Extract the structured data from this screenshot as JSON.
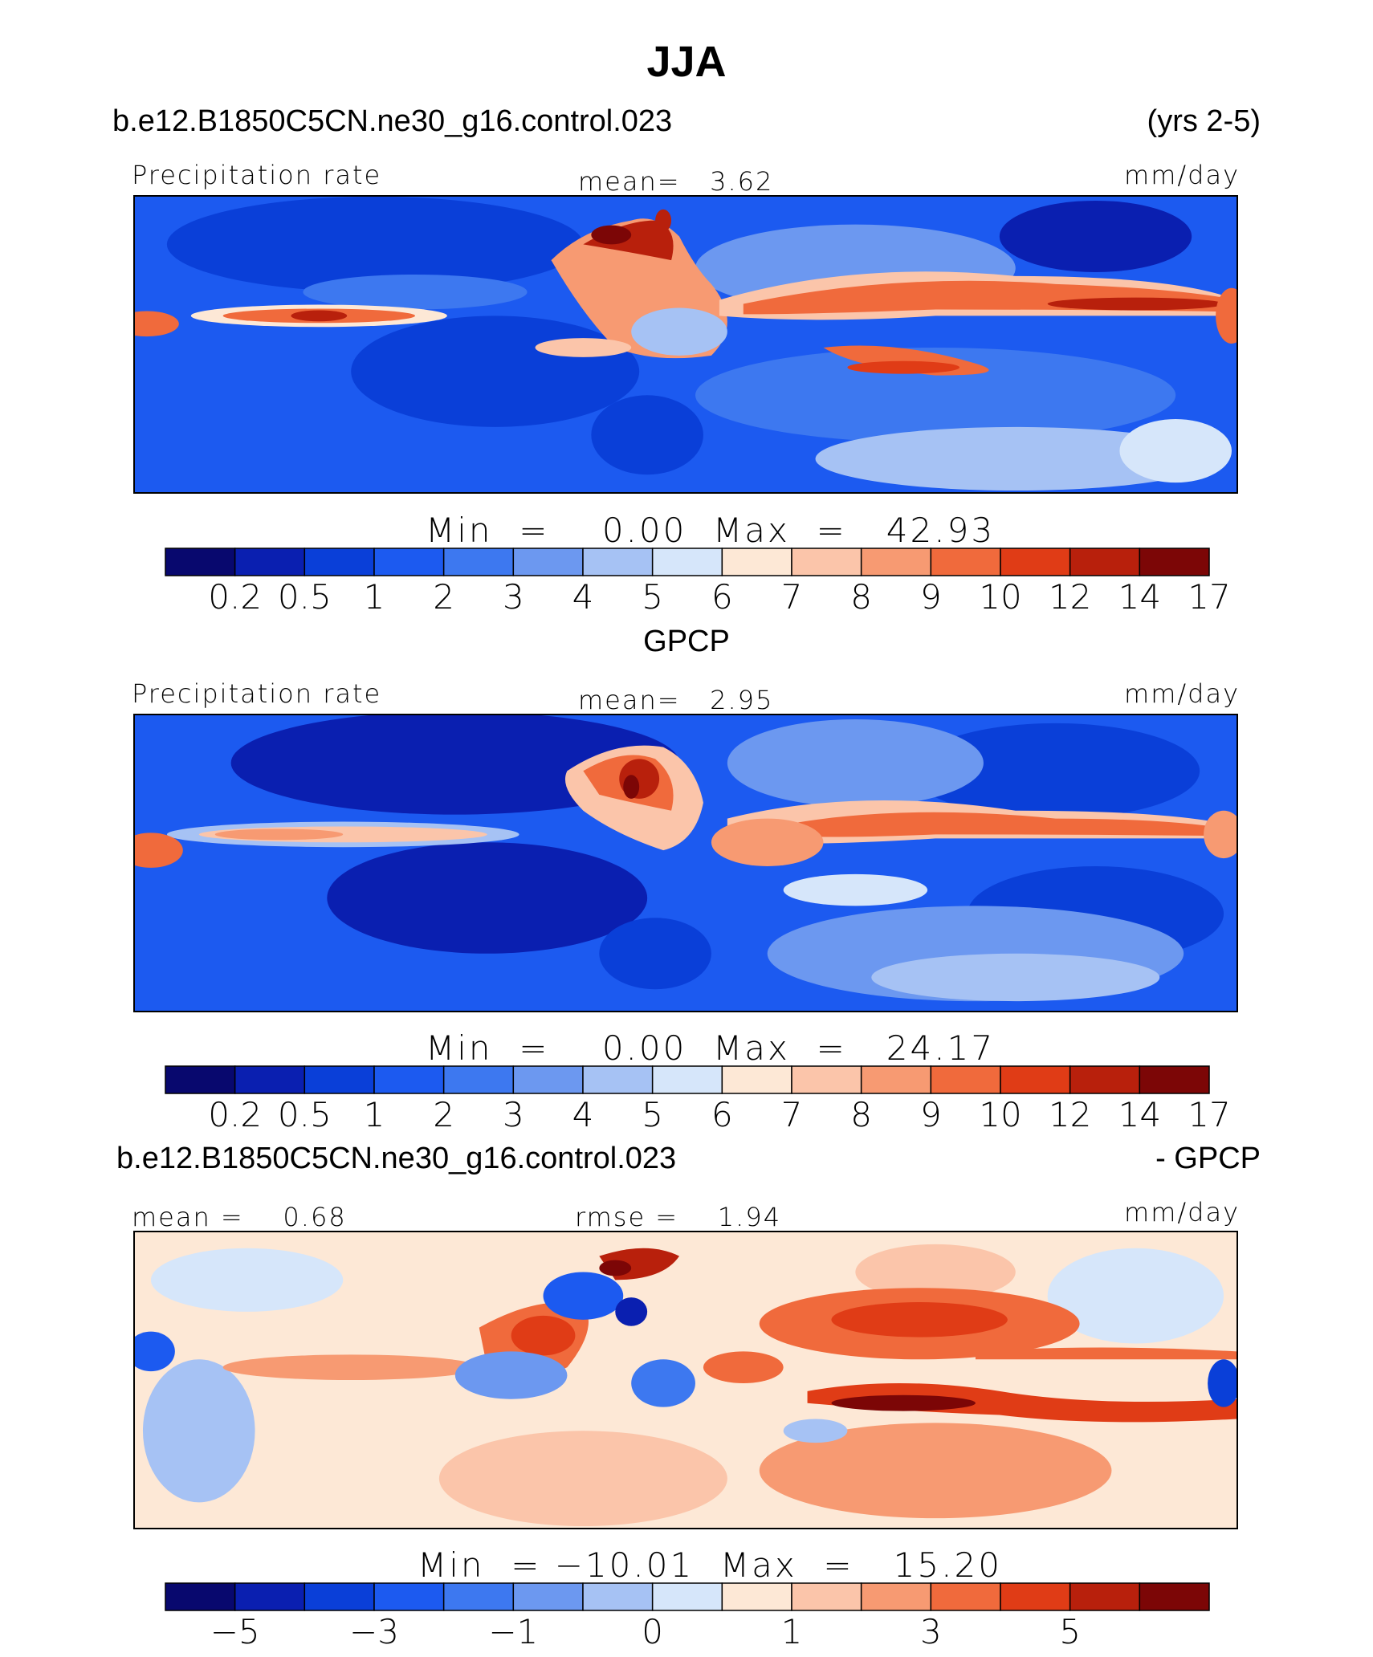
{
  "page": {
    "title": "JJA"
  },
  "panels": [
    {
      "case_label": "b.e12.B1850C5CN.ne30_g16.control.023",
      "years_label": "(yrs 2-5)",
      "variable_label": "Precipitation rate",
      "stat_label": "mean=   3.62",
      "units": "mm/day",
      "minmax_label": "Min  =    0.00  Max  =   42.93",
      "colorbar_ticks": [
        "0.2",
        "0.5",
        "1",
        "2",
        "3",
        "4",
        "5",
        "6",
        "7",
        "8",
        "9",
        "10",
        "12",
        "14",
        "17"
      ]
    },
    {
      "case_label": "GPCP",
      "variable_label": "Precipitation rate",
      "stat_label": "mean=   2.95",
      "units": "mm/day",
      "minmax_label": "Min  =    0.00  Max  =   24.17",
      "colorbar_ticks": [
        "0.2",
        "0.5",
        "1",
        "2",
        "3",
        "4",
        "5",
        "6",
        "7",
        "8",
        "9",
        "10",
        "12",
        "14",
        "17"
      ]
    },
    {
      "case_label": "b.e12.B1850C5CN.ne30_g16.control.023",
      "diff_label": "- GPCP",
      "mean_label": "mean =    0.68",
      "rmse_label": "rmse =    1.94",
      "units": "mm/day",
      "minmax_label": "Min  = −10.01  Max  =   15.20",
      "colorbar_ticks": [
        "−5",
        "−3",
        "−1",
        "0",
        "1",
        "3",
        "5"
      ]
    }
  ],
  "chart_data": [
    {
      "type": "heatmap",
      "title": "Precipitation rate",
      "case": "b.e12.B1850C5CN.ne30_g16.control.023",
      "period": "(yrs 2-5)",
      "season": "JJA",
      "units": "mm/day",
      "mean": 3.62,
      "min": 0.0,
      "max": 42.93,
      "contour_levels": [
        0.2,
        0.5,
        1,
        2,
        3,
        4,
        5,
        6,
        7,
        8,
        9,
        10,
        12,
        14,
        17
      ],
      "colorbar_colors": [
        "#08086e",
        "#0a1fb0",
        "#0a3fd8",
        "#1c5af0",
        "#3d78f0",
        "#6c98f0",
        "#a6c2f4",
        "#d6e6fa",
        "#fde8d6",
        "#fbc5aa",
        "#f79a72",
        "#f06a3c",
        "#e03c16",
        "#b8200c",
        "#7c0606"
      ]
    },
    {
      "type": "heatmap",
      "title": "Precipitation rate",
      "case": "GPCP",
      "season": "JJA",
      "units": "mm/day",
      "mean": 2.95,
      "min": 0.0,
      "max": 24.17,
      "contour_levels": [
        0.2,
        0.5,
        1,
        2,
        3,
        4,
        5,
        6,
        7,
        8,
        9,
        10,
        12,
        14,
        17
      ],
      "colorbar_colors": [
        "#08086e",
        "#0a1fb0",
        "#0a3fd8",
        "#1c5af0",
        "#3d78f0",
        "#6c98f0",
        "#a6c2f4",
        "#d6e6fa",
        "#fde8d6",
        "#fbc5aa",
        "#f79a72",
        "#f06a3c",
        "#e03c16",
        "#b8200c",
        "#7c0606"
      ]
    },
    {
      "type": "heatmap",
      "title": "b.e12.B1850C5CN.ne30_g16.control.023 - GPCP",
      "season": "JJA",
      "units": "mm/day",
      "mean": 0.68,
      "rmse": 1.94,
      "min": -10.01,
      "max": 15.2,
      "contour_levels": [
        -7,
        -5,
        -4,
        -3,
        -2,
        -1,
        -0.5,
        0,
        0.5,
        1,
        2,
        3,
        4,
        5,
        7
      ],
      "colorbar_tick_labels": [
        "−5",
        "−3",
        "−1",
        "0",
        "1",
        "3",
        "5"
      ],
      "colorbar_colors": [
        "#08086e",
        "#0a1fb0",
        "#0a3fd8",
        "#1c5af0",
        "#3d78f0",
        "#6c98f0",
        "#a6c2f4",
        "#d6e6fa",
        "#fde8d6",
        "#fbc5aa",
        "#f79a72",
        "#f06a3c",
        "#e03c16",
        "#b8200c",
        "#7c0606"
      ]
    }
  ]
}
